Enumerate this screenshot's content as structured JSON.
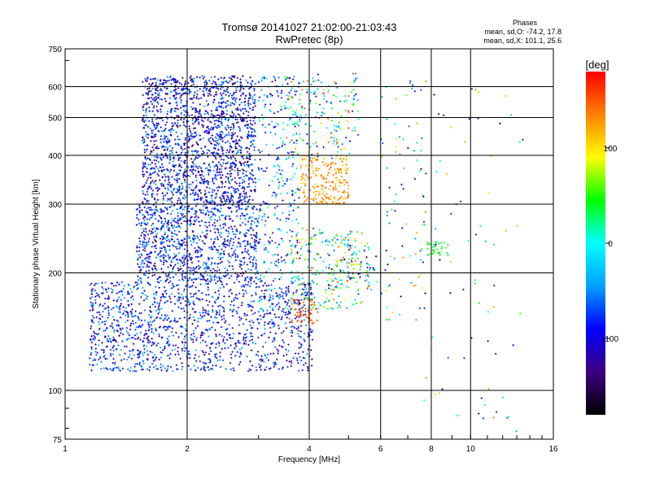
{
  "chart_data": {
    "type": "scatter",
    "title": "Tromsø 20141027 21:02:00-21:03:43",
    "subtitle": "RwPretec (8p)",
    "xlabel": "Frequency [MHz]",
    "ylabel": "Stationary phase Virtual Height [km]",
    "x_scale": "log",
    "y_scale": "log",
    "xlim": [
      1,
      16
    ],
    "ylim": [
      75,
      750
    ],
    "x_ticks": [
      1,
      2,
      4,
      6,
      8,
      10,
      16
    ],
    "y_ticks": [
      75,
      100,
      200,
      300,
      400,
      500,
      600,
      750
    ],
    "grid": true,
    "colorbar": {
      "label": "[deg]",
      "range": [
        -180,
        180
      ],
      "ticks": [
        100,
        0,
        -100
      ],
      "colors": [
        "#000000",
        "#3c0080",
        "#0000ff",
        "#00a0ff",
        "#00ffff",
        "#00ff00",
        "#ffff00",
        "#ff8000",
        "#ff0000"
      ]
    },
    "stats": {
      "heading": "Phases",
      "line1": "mean, sd,O: -74.2, 17.8",
      "line2": "mean, sd,X: 101.1, 25.6"
    },
    "clusters": [
      {
        "x": [
          1.55,
          2.95
        ],
        "y": [
          300,
          640
        ],
        "phase": [
          -160,
          -40
        ],
        "n": 1700
      },
      {
        "x": [
          1.5,
          3.0
        ],
        "y": [
          190,
          300
        ],
        "phase": [
          -150,
          -30
        ],
        "n": 1000
      },
      {
        "x": [
          1.15,
          2.4
        ],
        "y": [
          112,
          190
        ],
        "phase": [
          -150,
          -30
        ],
        "n": 850
      },
      {
        "x": [
          2.4,
          4.1
        ],
        "y": [
          112,
          190
        ],
        "phase": [
          -150,
          -40
        ],
        "n": 450
      },
      {
        "x": [
          3.0,
          3.8
        ],
        "y": [
          160,
          640
        ],
        "phase": [
          -140,
          30
        ],
        "n": 350
      },
      {
        "x": [
          3.8,
          5.0
        ],
        "y": [
          300,
          400
        ],
        "phase": [
          100,
          150
        ],
        "n": 220
      },
      {
        "x": [
          3.6,
          5.4
        ],
        "y": [
          160,
          260
        ],
        "phase": [
          -80,
          140
        ],
        "n": 220
      },
      {
        "x": [
          4.4,
          5.9
        ],
        "y": [
          180,
          240
        ],
        "phase": [
          -180,
          170
        ],
        "n": 110
      },
      {
        "x": [
          3.5,
          5.3
        ],
        "y": [
          390,
          650
        ],
        "phase": [
          -110,
          160
        ],
        "n": 180
      },
      {
        "x": [
          3.6,
          4.2
        ],
        "y": [
          148,
          172
        ],
        "phase": [
          140,
          175
        ],
        "n": 55
      },
      {
        "x": [
          6.0,
          7.8
        ],
        "y": [
          150,
          620
        ],
        "phase": [
          -180,
          140
        ],
        "n": 90
      },
      {
        "x": [
          7.8,
          8.8
        ],
        "y": [
          220,
          240
        ],
        "phase": [
          20,
          60
        ],
        "n": 35
      },
      {
        "x": [
          7.6,
          13.5
        ],
        "y": [
          78,
          620
        ],
        "phase": [
          -180,
          140
        ],
        "n": 70
      }
    ]
  }
}
